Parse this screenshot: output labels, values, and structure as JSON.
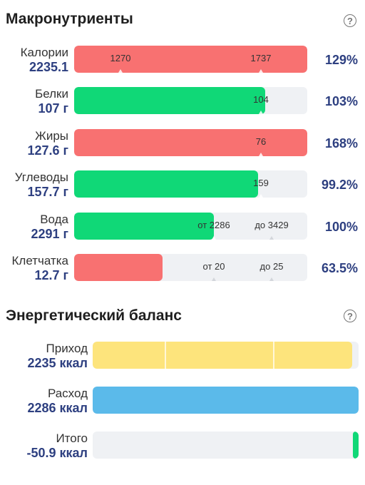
{
  "macros": {
    "title": "Макронутриенты",
    "help": "?",
    "rows": [
      {
        "name": "Калории",
        "value": "2235.1",
        "percent": "129%",
        "m1": "1270",
        "m2": "1737"
      },
      {
        "name": "Белки",
        "value": "107 г",
        "percent": "103%",
        "m1": "104"
      },
      {
        "name": "Жиры",
        "value": "127.6 г",
        "percent": "168%",
        "m1": "76"
      },
      {
        "name": "Углеводы",
        "value": "157.7 г",
        "percent": "99.2%",
        "m1": "159"
      },
      {
        "name": "Вода",
        "value": "2291 г",
        "percent": "100%",
        "m1": "от 2286",
        "m2": "до 3429"
      },
      {
        "name": "Клетчатка",
        "value": "12.7 г",
        "percent": "63.5%",
        "m1": "от 20",
        "m2": "до 25"
      }
    ]
  },
  "energy": {
    "title": "Энергетический баланс",
    "help": "?",
    "rows": [
      {
        "name": "Приход",
        "value": "2235 ккал"
      },
      {
        "name": "Расход",
        "value": "2286 ккал"
      },
      {
        "name": "Итого",
        "value": "-50.9 ккал"
      }
    ]
  },
  "colors": {
    "over": "#f87171",
    "ok": "#10d877",
    "intake": "#fde47c",
    "expense": "#5bbaea",
    "track": "#eff1f4",
    "value_text": "#2d3f80"
  }
}
